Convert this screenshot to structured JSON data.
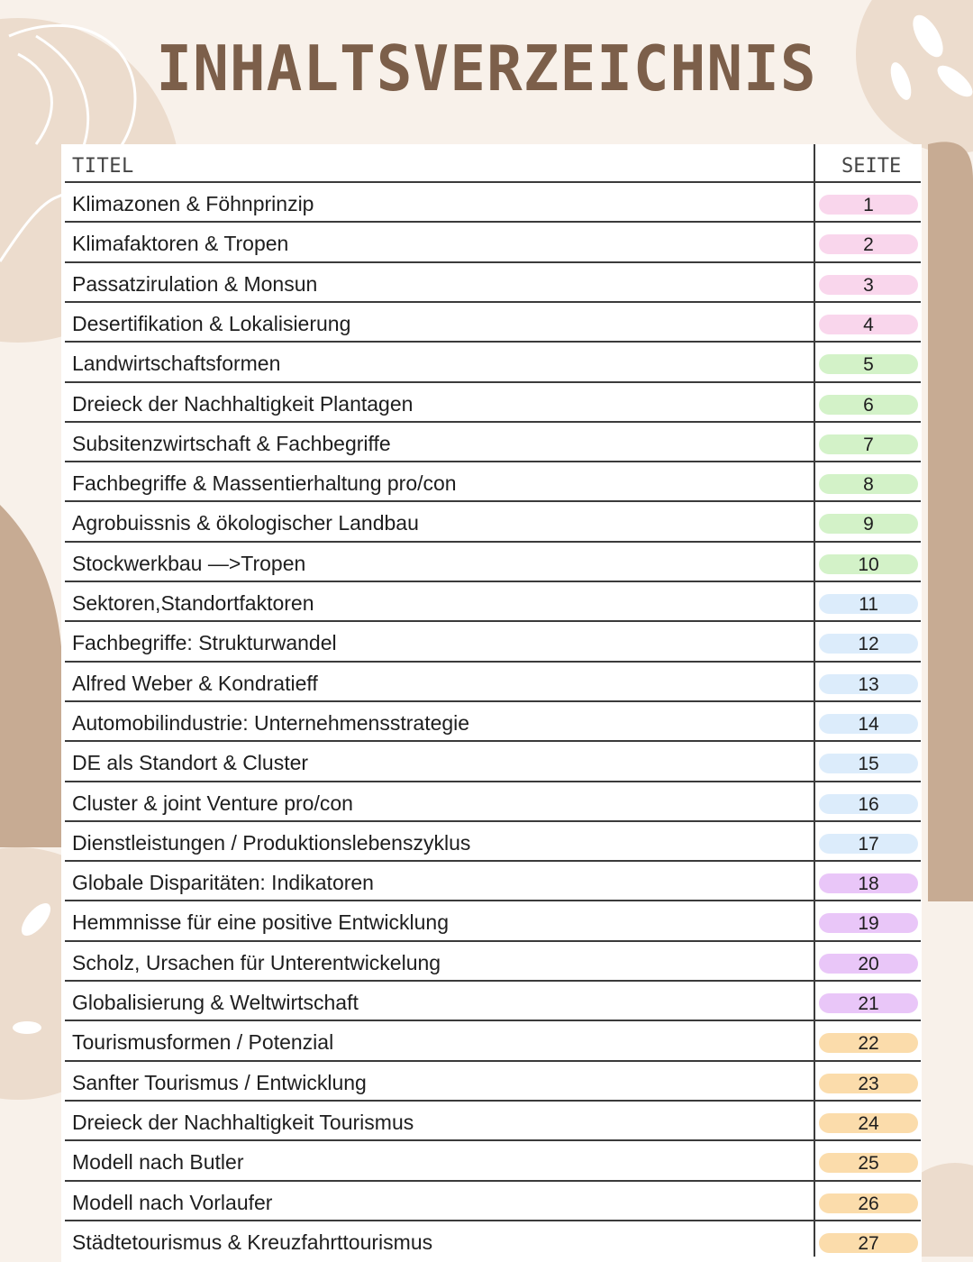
{
  "title": "INHALTSVERZEICHNIS",
  "header": {
    "titel": "TITEL",
    "seite": "SEITE"
  },
  "colors": {
    "pink": "#f9d6ec",
    "green": "#d3f2c8",
    "blue": "#dcecfb",
    "purple": "#e9c6f8",
    "orange": "#fbdcab",
    "brown": "#c7ab93",
    "beige": "#ecdccd"
  },
  "rows": [
    {
      "title": "Klimazonen & Föhnprinzip",
      "page": "1",
      "color": "#f9d6ec"
    },
    {
      "title": "Klimafaktoren & Tropen",
      "page": "2",
      "color": "#f9d6ec"
    },
    {
      "title": "Passatzirulation & Monsun",
      "page": "3",
      "color": "#f9d6ec"
    },
    {
      "title": "Desertifikation & Lokalisierung",
      "page": "4",
      "color": "#f9d6ec"
    },
    {
      "title": "Landwirtschaftsformen",
      "page": "5",
      "color": "#d3f2c8"
    },
    {
      "title": "Dreieck der Nachhaltigkeit Plantagen",
      "page": "6",
      "color": "#d3f2c8"
    },
    {
      "title": "Subsitenzwirtschaft & Fachbegriffe",
      "page": "7",
      "color": "#d3f2c8"
    },
    {
      "title": "Fachbegriffe & Massentierhaltung pro/con",
      "page": "8",
      "color": "#d3f2c8"
    },
    {
      "title": "Agrobuissnis & ökologischer Landbau",
      "page": "9",
      "color": "#d3f2c8"
    },
    {
      "title": "Stockwerkbau —>Tropen",
      "page": "10",
      "color": "#d3f2c8"
    },
    {
      "title": "Sektoren,Standortfaktoren",
      "page": "11",
      "color": "#dcecfb"
    },
    {
      "title": "Fachbegriffe: Strukturwandel",
      "page": "12",
      "color": "#dcecfb"
    },
    {
      "title": "Alfred Weber & Kondratieff",
      "page": "13",
      "color": "#dcecfb"
    },
    {
      "title": "Automobilindustrie: Unternehmensstrategie",
      "page": "14",
      "color": "#dcecfb"
    },
    {
      "title": "DE als Standort & Cluster",
      "page": "15",
      "color": "#dcecfb"
    },
    {
      "title": "Cluster & joint Venture pro/con",
      "page": "16",
      "color": "#dcecfb"
    },
    {
      "title": "Dienstleistungen / Produktionslebenszyklus",
      "page": "17",
      "color": "#dcecfb"
    },
    {
      "title": "Globale Disparitäten: Indikatoren",
      "page": "18",
      "color": "#e9c6f8"
    },
    {
      "title": "Hemmnisse für eine positive Entwicklung",
      "page": "19",
      "color": "#e9c6f8"
    },
    {
      "title": "Scholz, Ursachen für Unterentwickelung",
      "page": "20",
      "color": "#e9c6f8"
    },
    {
      "title": "Globalisierung & Weltwirtschaft",
      "page": "21",
      "color": "#e9c6f8"
    },
    {
      "title": "Tourismusformen / Potenzial",
      "page": "22",
      "color": "#fbdcab"
    },
    {
      "title": "Sanfter Tourismus / Entwicklung",
      "page": "23",
      "color": "#fbdcab"
    },
    {
      "title": "Dreieck der Nachhaltigkeit Tourismus",
      "page": "24",
      "color": "#fbdcab"
    },
    {
      "title": "Modell nach Butler",
      "page": "25",
      "color": "#fbdcab"
    },
    {
      "title": "Modell nach Vorlaufer",
      "page": "26",
      "color": "#fbdcab"
    },
    {
      "title": "Städtetourismus & Kreuzfahrttourismus",
      "page": "27",
      "color": "#fbdcab"
    }
  ]
}
